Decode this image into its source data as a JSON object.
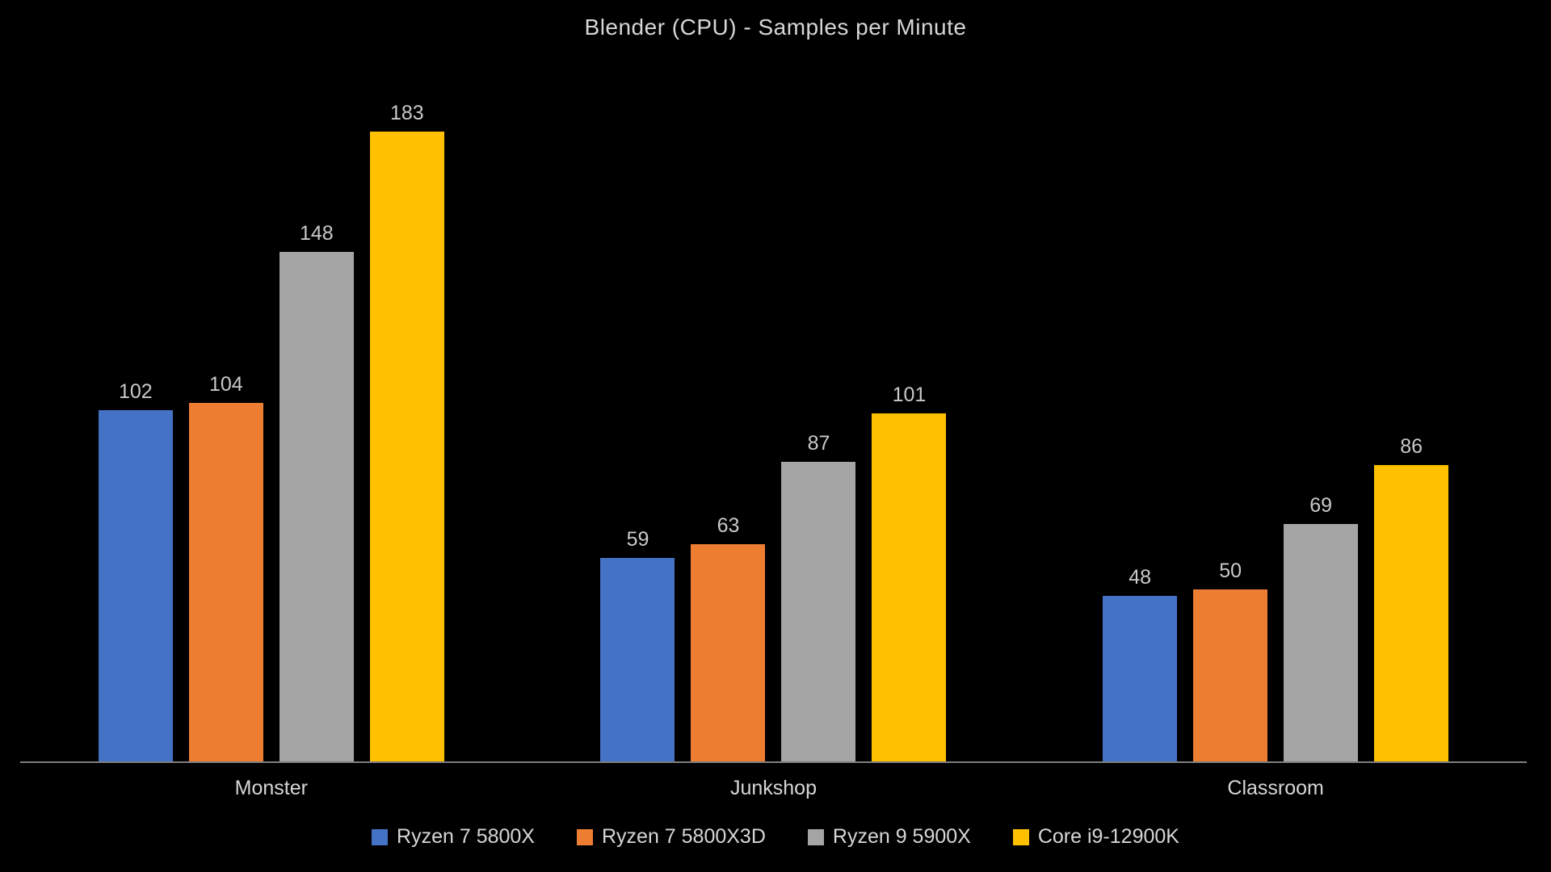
{
  "chart_data": {
    "type": "bar",
    "title": "Blender (CPU) - Samples per Minute",
    "categories": [
      "Monster",
      "Junkshop",
      "Classroom"
    ],
    "series": [
      {
        "name": "Ryzen 7 5800X",
        "color": "#4472C4",
        "values": [
          102,
          59,
          48
        ]
      },
      {
        "name": "Ryzen 7 5800X3D",
        "color": "#ED7D31",
        "values": [
          104,
          63,
          50
        ]
      },
      {
        "name": "Ryzen 9 5900X",
        "color": "#A5A5A5",
        "values": [
          148,
          87,
          69
        ]
      },
      {
        "name": "Core i9-12900K",
        "color": "#FFC000",
        "values": [
          183,
          101,
          86
        ]
      }
    ],
    "ylim": [
      0,
      200
    ],
    "grid": false,
    "data_labels": true,
    "legend_position": "bottom"
  },
  "style": {
    "background": "#000000",
    "text_color": "#d6d6d6",
    "value_label_color": "#c9c9c9",
    "axis_color": "#7f7f7f"
  }
}
